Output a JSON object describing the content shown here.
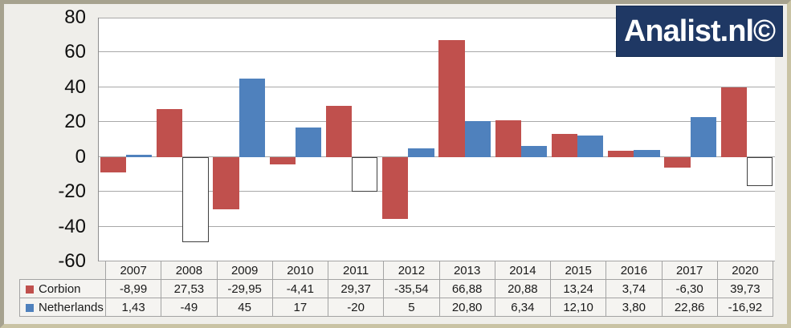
{
  "page": {
    "background": "#EFEEEA",
    "frame_border_color": "#A6A28F"
  },
  "logo": {
    "text": "Analist.nl©",
    "bg": "#1F3864",
    "fg": "#FFFFFF"
  },
  "chart_data": {
    "type": "bar",
    "title": "",
    "xlabel": "",
    "ylabel": "",
    "categories": [
      "2007",
      "2008",
      "2009",
      "2010",
      "2011",
      "2012",
      "2013",
      "2014",
      "2015",
      "2016",
      "2017",
      "2020"
    ],
    "series": [
      {
        "name": "Corbion",
        "color": "#C0504D",
        "values": [
          -8.99,
          27.53,
          -29.95,
          -4.41,
          29.37,
          -35.54,
          66.88,
          20.88,
          13.24,
          3.74,
          -6.3,
          39.73
        ],
        "labels": [
          "-8,99",
          "27,53",
          "-29,95",
          "-4,41",
          "29,37",
          "-35,54",
          "66,88",
          "20,88",
          "13,24",
          "3,74",
          "-6,30",
          "39,73"
        ]
      },
      {
        "name": "Netherlands",
        "color": "#4F81BD",
        "invert_if_negative": true,
        "negative_fill": "#FFFFFF",
        "negative_border": "#404040",
        "values": [
          1.43,
          -49,
          45,
          17,
          -20,
          5,
          20.8,
          6.34,
          12.1,
          3.8,
          22.86,
          -16.92
        ],
        "labels": [
          "1,43",
          "-49",
          "45",
          "17",
          "-20",
          "5",
          "20,80",
          "6,34",
          "12,10",
          "3,80",
          "22,86",
          "-16,92"
        ]
      }
    ],
    "ylim": [
      -60,
      80
    ],
    "ytick_step": 20,
    "yticks": [
      80,
      60,
      40,
      20,
      0,
      -20,
      -40,
      -60
    ],
    "grid": true,
    "gridline_color": "#A8A8A8",
    "axis_line_color": "#8E8E8E",
    "plot_bg": "#FFFFFF",
    "legend_position": "table-left",
    "table": {
      "cell_bg": "#F5F4F1",
      "border_color": "#A3A3A3",
      "text_color": "#1A1A1A"
    }
  }
}
